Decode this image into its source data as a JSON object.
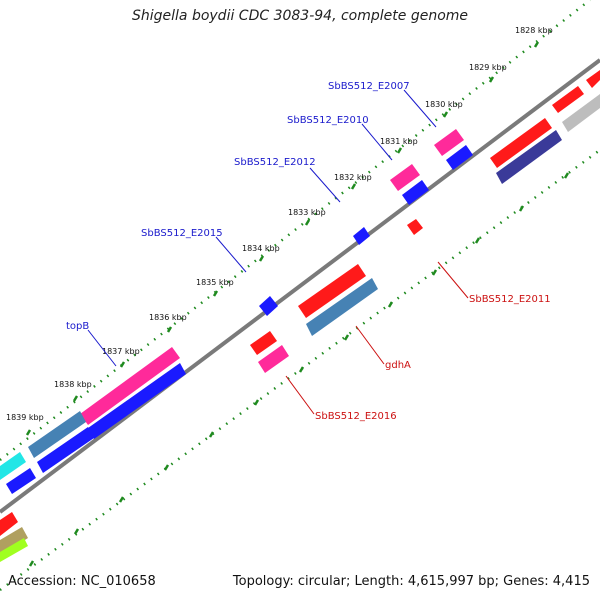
{
  "title": "Shigella boydii CDC 3083-94, complete genome",
  "footer": {
    "accession": "Accession: NC_010658",
    "stats": "Topology: circular; Length: 4,615,997 bp; Genes: 4,415"
  },
  "kbp_ticks": [
    "1828 kbp",
    "1829 kbp",
    "1830 kbp",
    "1831 kbp",
    "1832 kbp",
    "1833 kbp",
    "1834 kbp",
    "1835 kbp",
    "1836 kbp",
    "1837 kbp",
    "1838 kbp",
    "1839 kbp"
  ],
  "labels_forward": [
    "SbBS512_E2007",
    "SbBS512_E2010",
    "SbBS512_E2012",
    "SbBS512_E2015",
    "topB"
  ],
  "labels_reverse": [
    "SbBS512_E2011",
    "gdhA",
    "SbBS512_E2016"
  ],
  "colors": {
    "backbone": "#7a7a7a",
    "tick": "#1f8a1f",
    "forward_label": "#1a1acc",
    "reverse_label": "#cc1111",
    "red": "#ff1a1a",
    "pink": "#ff2a9a",
    "blue": "#1a1aff",
    "steel": "#4682b4",
    "navy": "#3a3a99",
    "cyan": "#22e6e6",
    "gray": "#bdbdbd",
    "olive": "#b0a060",
    "lime": "#a0ff20"
  }
}
